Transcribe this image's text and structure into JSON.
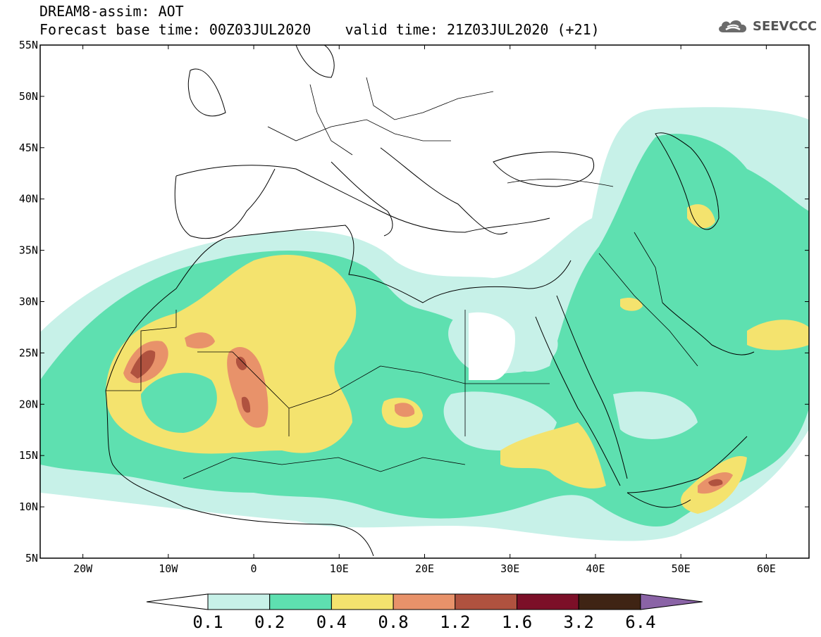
{
  "title": {
    "line1": "DREAM8-assim: AOT",
    "line2": "Forecast base time: 00Z03JUL2020    valid time: 21Z03JUL2020 (+21)"
  },
  "logo": {
    "text": "SEEVCCC",
    "icon": "cloud-icon"
  },
  "map": {
    "variable": "AOT",
    "lat_range": [
      5,
      55
    ],
    "lon_range": [
      -25,
      65
    ],
    "lat_labels": [
      "55N",
      "50N",
      "45N",
      "40N",
      "35N",
      "30N",
      "25N",
      "20N",
      "15N",
      "10N",
      "5N"
    ],
    "lon_labels": [
      "20W",
      "10W",
      "0",
      "10E",
      "20E",
      "30E",
      "40E",
      "50E",
      "60E"
    ],
    "background_color": "#ffffff",
    "boundary_color": "#000000"
  },
  "colorbar": {
    "levels": [
      "0.1",
      "0.2",
      "0.4",
      "0.8",
      "1.2",
      "1.6",
      "3.2",
      "6.4"
    ],
    "colors": [
      "#ffffff",
      "#c7f1e8",
      "#5ee0b0",
      "#f4e36e",
      "#e8926a",
      "#b0523f",
      "#7c0f28",
      "#3f2414",
      "#8a63a6"
    ]
  }
}
